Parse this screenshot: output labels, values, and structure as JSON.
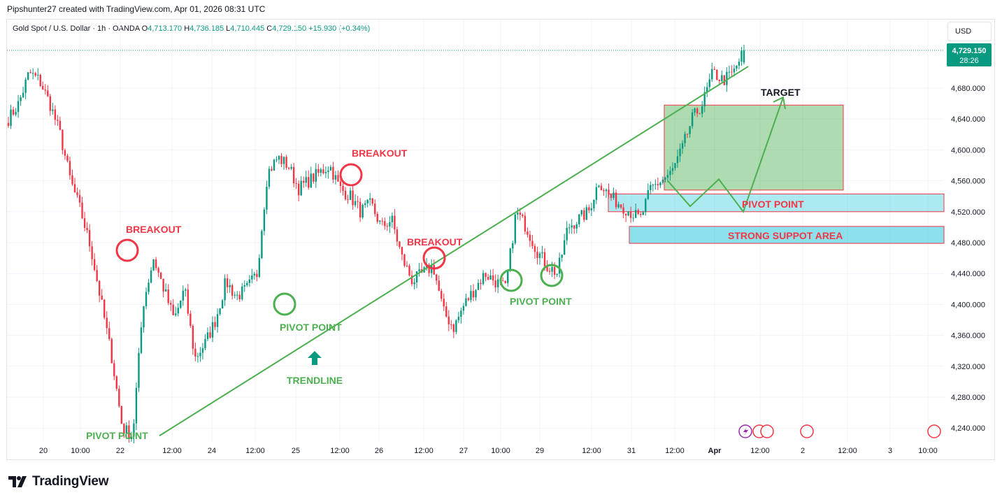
{
  "header": {
    "attribution": "Pipshunter27 created with TradingView.com, Apr 01, 2026 08:31 UTC"
  },
  "legend": {
    "symbol": "Gold Spot / U.S. Dollar · 1h · OANDA",
    "open_label": "O",
    "open": "4,713.170",
    "high_label": "H",
    "high": "4,736.185",
    "low_label": "L",
    "low": "4,710.445",
    "close_label": "C",
    "close": "4,729.150",
    "change": "+15.930 (+0.34%)"
  },
  "currency_button": "USD",
  "price_tag": {
    "price": "4,729.150",
    "countdown": "28:26",
    "color": "#089981"
  },
  "footer": {
    "brand": "TradingView"
  },
  "colors": {
    "up": "#089981",
    "down": "#f23645",
    "annotation_green": "#4caf50",
    "annotation_red": "#f23645"
  },
  "chart_data": {
    "type": "candlestick",
    "title": "Gold Spot / U.S. Dollar · 1h · OANDA",
    "y_axis": {
      "ticks": [
        "4,680.000",
        "4,640.000",
        "4,600.000",
        "4,560.000",
        "4,520.000",
        "4,480.000",
        "4,440.000",
        "4,400.000",
        "4,360.000",
        "4,320.000",
        "4,280.000",
        "4,240.000"
      ],
      "tick_values": [
        4680,
        4640,
        4600,
        4560,
        4520,
        4480,
        4440,
        4400,
        4360,
        4320,
        4280,
        4240
      ],
      "range": [
        4222,
        4775
      ]
    },
    "x_axis": {
      "ticks": [
        "20",
        "10:00",
        "22",
        "12:00",
        "24",
        "12:00",
        "25",
        "12:00",
        "26",
        "12:00",
        "27",
        "10:00",
        "29",
        "12:00",
        "31",
        "12:00",
        "Apr",
        "12:00",
        "2",
        "12:00",
        "3",
        "10:00"
      ],
      "bold_tick": "Apr"
    },
    "ohlc_anchor_path": [
      4640,
      4660,
      4700,
      4690,
      4660,
      4620,
      4560,
      4520,
      4470,
      4400,
      4330,
      4240,
      4230,
      4400,
      4460,
      4420,
      4380,
      4420,
      4330,
      4350,
      4380,
      4430,
      4410,
      4420,
      4440,
      4570,
      4590,
      4580,
      4550,
      4560,
      4570,
      4580,
      4550,
      4540,
      4520,
      4530,
      4500,
      4510,
      4460,
      4430,
      4440,
      4450,
      4390,
      4370,
      4400,
      4420,
      4440,
      4430,
      4420,
      4520,
      4500,
      4470,
      4450,
      4440,
      4500,
      4510,
      4520,
      4560,
      4540,
      4530,
      4520,
      4510,
      4550,
      4560,
      4570,
      4600,
      4640,
      4660,
      4700,
      4690,
      4700,
      4729
    ],
    "last": {
      "open": 4713.17,
      "high": 4736.185,
      "low": 4710.445,
      "close": 4729.15
    },
    "annotations": {
      "breakout_labels": [
        "BREAKOUT",
        "BREAKOUT",
        "BREAKOUT"
      ],
      "pivot_labels": [
        "PIVOT POINT",
        "PIVOT POINT",
        "PIVOT POINT",
        "PIVOT POINT"
      ],
      "trendline_label": "TRENDLINE",
      "target_label": "TARGET",
      "strong_support_label": "STRONG SUPPOT AREA",
      "target_zone": [
        4548,
        4658
      ],
      "pivot_zone": [
        4520,
        4543
      ],
      "support_zone": [
        4479,
        4501
      ],
      "trendline": [
        [
          4230,
          "start"
        ],
        [
          4708,
          "end"
        ]
      ],
      "projection": [
        4560,
        4527,
        4562,
        4520,
        4668
      ]
    }
  }
}
